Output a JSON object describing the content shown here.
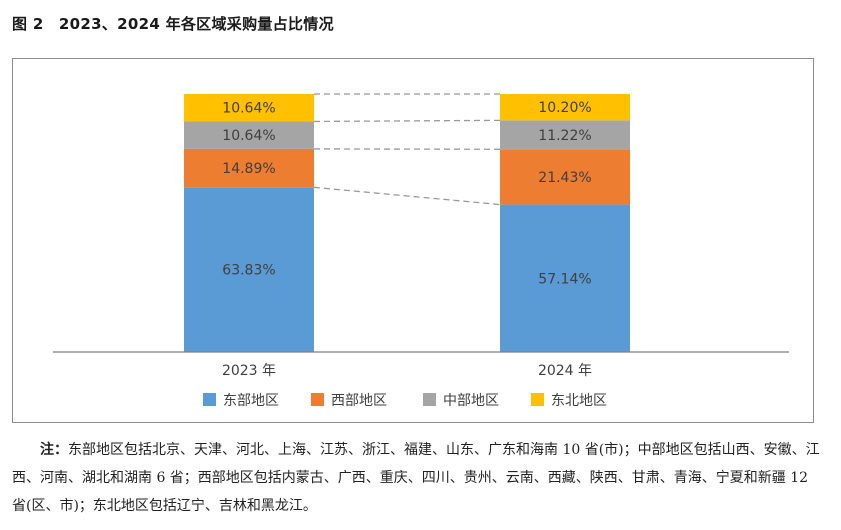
{
  "figure_title": "图 2　2023、2024 年各区域采购量占比情况",
  "chart_data": {
    "type": "bar",
    "stacked": true,
    "categories": [
      "2023 年",
      "2024 年"
    ],
    "series": [
      {
        "name": "东部地区",
        "color": "#5b9bd5",
        "values": [
          63.83,
          57.14
        ],
        "labels": [
          "63.83%",
          "57.14%"
        ]
      },
      {
        "name": "西部地区",
        "color": "#ed7d31",
        "values": [
          14.89,
          21.43
        ],
        "labels": [
          "14.89%",
          "21.43%"
        ]
      },
      {
        "name": "中部地区",
        "color": "#a5a5a5",
        "values": [
          10.64,
          11.22
        ],
        "labels": [
          "10.64%",
          "11.22%"
        ]
      },
      {
        "name": "东北地区",
        "color": "#ffc000",
        "values": [
          10.64,
          10.2
        ],
        "labels": [
          "10.64%",
          "10.20%"
        ]
      }
    ],
    "ylim": [
      0,
      100
    ],
    "grid": false,
    "legend_position": "bottom",
    "connector_lines": true,
    "title": "",
    "xlabel": "",
    "ylabel": ""
  },
  "note": {
    "prefix": "注：",
    "text": "东部地区包括北京、天津、河北、上海、江苏、浙江、福建、山东、广东和海南 10 省(市)；中部地区包括山西、安徽、江西、河南、湖北和湖南 6 省；西部地区包括内蒙古、广西、重庆、四川、贵州、云南、西藏、陕西、甘肃、青海、宁夏和新疆 12 省(区、市)；东北地区包括辽宁、吉林和黑龙江。"
  }
}
